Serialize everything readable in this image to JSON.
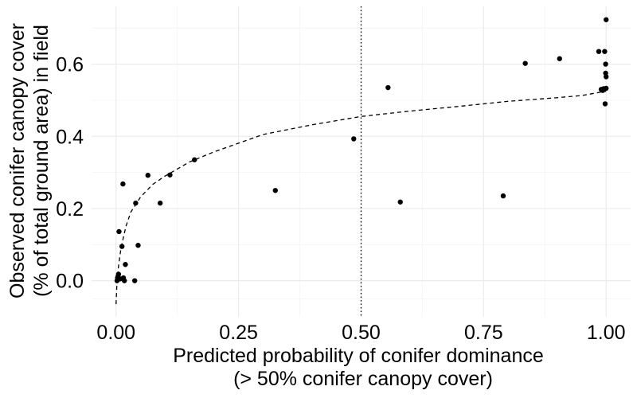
{
  "chart_data": {
    "type": "scatter",
    "title": "",
    "xlabel": [
      "Predicted probability of conifer dominance",
      "(> 50% conifer canopy cover)"
    ],
    "ylabel": [
      "Observed conifer canopy cover",
      "(% of total ground area) in field"
    ],
    "xlim": [
      -0.05,
      1.05
    ],
    "ylim": [
      -0.1,
      0.76
    ],
    "x_ticks": [
      0.0,
      0.25,
      0.5,
      0.75,
      1.0
    ],
    "x_tick_labels": [
      "0.00",
      "0.25",
      "0.50",
      "0.75",
      "1.00"
    ],
    "y_ticks": [
      0.0,
      0.2,
      0.4,
      0.6
    ],
    "y_tick_labels": [
      "0.0",
      "0.2",
      "0.4",
      "0.6"
    ],
    "grid": true,
    "vertical_reference_line": {
      "x": 0.5,
      "style": "dotted"
    },
    "points": [
      {
        "x": 0.002,
        "y": 0.0
      },
      {
        "x": 0.003,
        "y": 0.008
      },
      {
        "x": 0.004,
        "y": 0.012
      },
      {
        "x": 0.005,
        "y": 0.018
      },
      {
        "x": 0.006,
        "y": 0.136
      },
      {
        "x": 0.008,
        "y": 0.005
      },
      {
        "x": 0.012,
        "y": 0.095
      },
      {
        "x": 0.014,
        "y": 0.268
      },
      {
        "x": 0.015,
        "y": 0.008
      },
      {
        "x": 0.017,
        "y": 0.0
      },
      {
        "x": 0.019,
        "y": 0.045
      },
      {
        "x": 0.038,
        "y": 0.0
      },
      {
        "x": 0.04,
        "y": 0.215
      },
      {
        "x": 0.045,
        "y": 0.098
      },
      {
        "x": 0.065,
        "y": 0.292
      },
      {
        "x": 0.09,
        "y": 0.215
      },
      {
        "x": 0.11,
        "y": 0.293
      },
      {
        "x": 0.16,
        "y": 0.335
      },
      {
        "x": 0.325,
        "y": 0.25
      },
      {
        "x": 0.485,
        "y": 0.393
      },
      {
        "x": 0.555,
        "y": 0.535
      },
      {
        "x": 0.58,
        "y": 0.218
      },
      {
        "x": 0.79,
        "y": 0.235
      },
      {
        "x": 0.835,
        "y": 0.602
      },
      {
        "x": 0.905,
        "y": 0.615
      },
      {
        "x": 0.985,
        "y": 0.635
      },
      {
        "x": 0.99,
        "y": 0.53
      },
      {
        "x": 0.993,
        "y": 0.527
      },
      {
        "x": 0.995,
        "y": 0.532
      },
      {
        "x": 0.997,
        "y": 0.635
      },
      {
        "x": 0.998,
        "y": 0.49
      },
      {
        "x": 0.999,
        "y": 0.6
      },
      {
        "x": 0.999,
        "y": 0.575
      },
      {
        "x": 1.0,
        "y": 0.565
      },
      {
        "x": 1.0,
        "y": 0.533
      },
      {
        "x": 1.0,
        "y": 0.723
      }
    ],
    "fit_line": {
      "style": "dashed",
      "x": [
        0.0,
        0.002,
        0.005,
        0.01,
        0.02,
        0.03,
        0.05,
        0.075,
        0.1,
        0.15,
        0.2,
        0.3,
        0.4,
        0.5,
        0.6,
        0.7,
        0.8,
        0.9,
        0.95,
        1.0
      ],
      "y": [
        -0.065,
        0.0,
        0.04,
        0.09,
        0.15,
        0.19,
        0.232,
        0.267,
        0.29,
        0.329,
        0.357,
        0.405,
        0.432,
        0.455,
        0.47,
        0.483,
        0.497,
        0.507,
        0.513,
        0.525
      ]
    }
  }
}
